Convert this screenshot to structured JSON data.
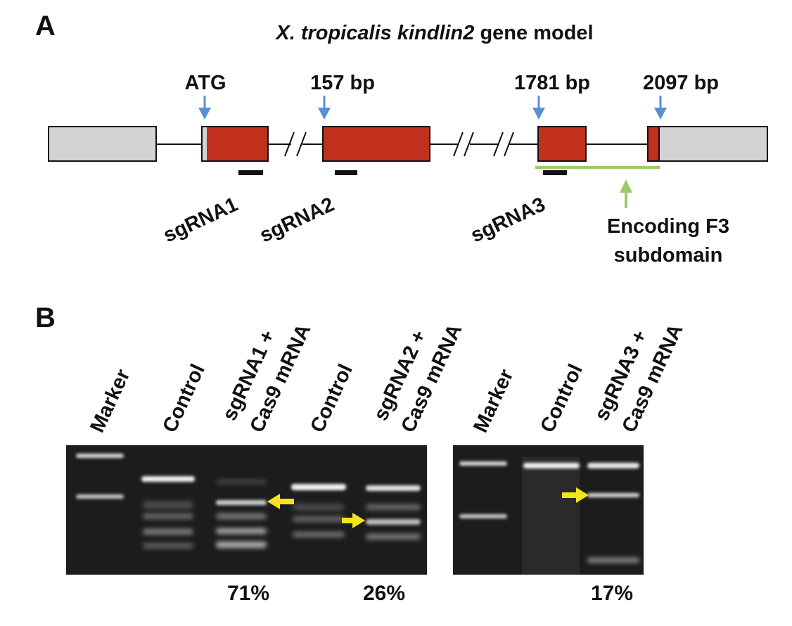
{
  "panel_a": {
    "label": "A",
    "title_italic": "X. tropicalis kindlin2",
    "title_rest": " gene model",
    "markers": [
      "ATG",
      "157 bp",
      "1781 bp",
      "2097 bp"
    ],
    "sgrnas": [
      "sgRNA1",
      "sgRNA2",
      "sgRNA3"
    ],
    "domain_note": [
      "Encoding F3",
      "subdomain"
    ]
  },
  "panel_b": {
    "label": "B",
    "lanes_gel1": [
      [
        "Marker"
      ],
      [
        "Control"
      ],
      [
        "sgRNA1 +",
        "Cas9 mRNA"
      ],
      [
        "Control"
      ],
      [
        "sgRNA2 +",
        "Cas9 mRNA"
      ]
    ],
    "lanes_gel2": [
      [
        "Marker"
      ],
      [
        "Control"
      ],
      [
        "sgRNA3 +",
        "Cas9 mRNA"
      ]
    ],
    "percentages": [
      "71%",
      "26%",
      "17%"
    ]
  },
  "colors": {
    "exon_coding": "#c0301c",
    "utr": "#d3d3d3",
    "arrow_blue": "#5b8fd0",
    "domain_green": "#9bcb6a",
    "arrow_yellow": "#f5e419",
    "gel_bg": "#1c1c1c"
  }
}
